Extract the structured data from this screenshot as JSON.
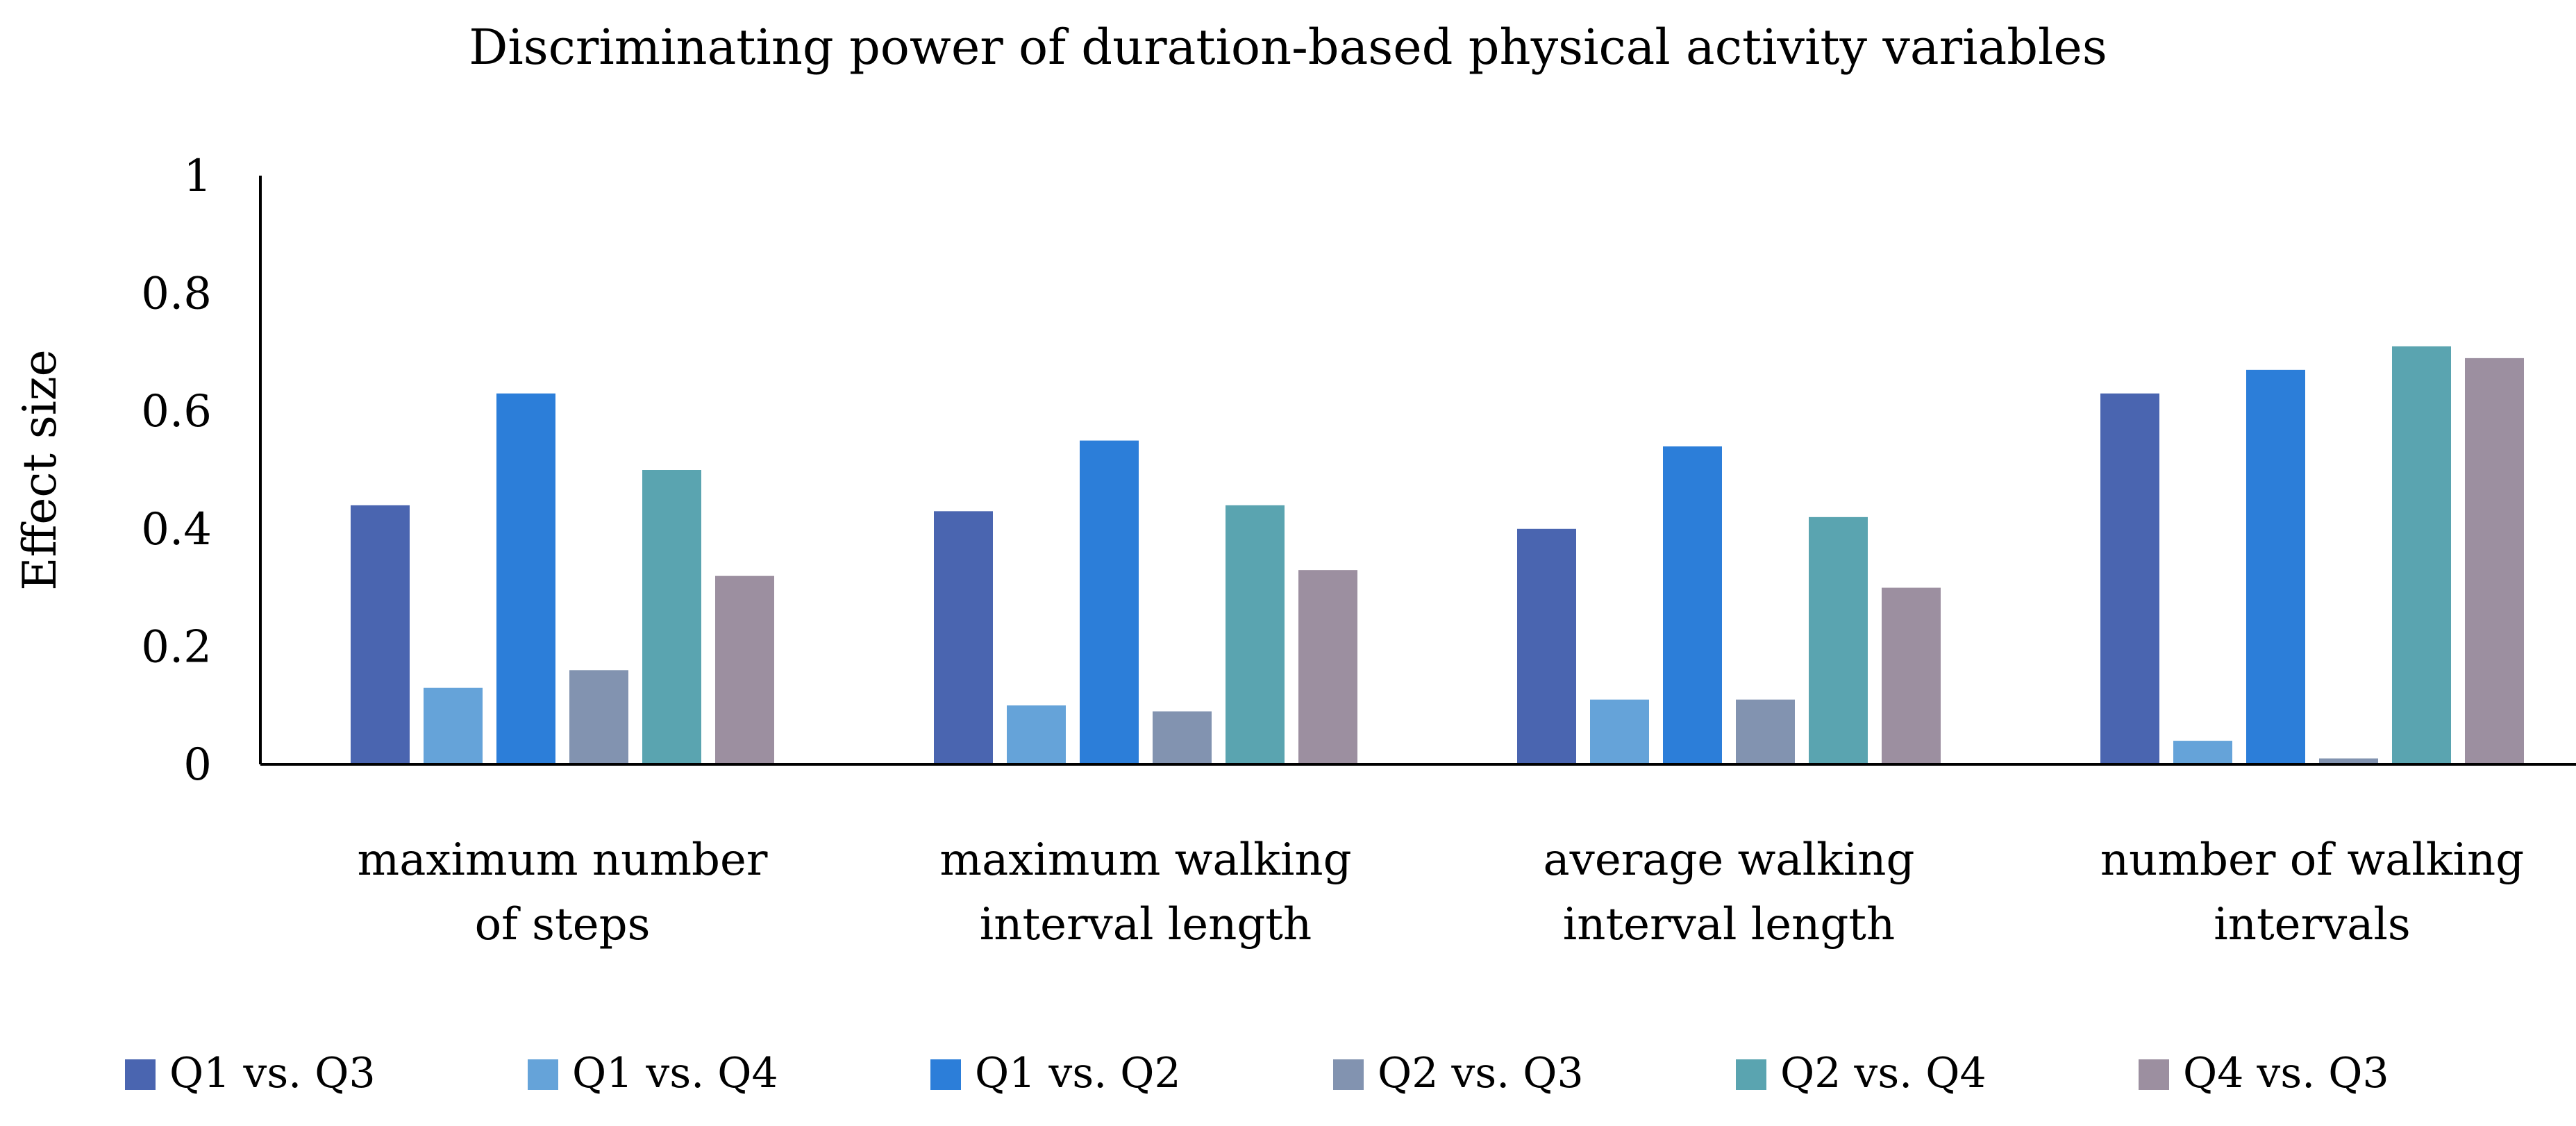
{
  "chart_data": {
    "type": "bar",
    "title": "Discriminating power of duration-based physical activity variables",
    "xlabel": "",
    "ylabel": "Effect size",
    "ylim": [
      0,
      1
    ],
    "yticks": [
      "0",
      "0.2",
      "0.4",
      "0.6",
      "0.8",
      "1"
    ],
    "grid": false,
    "legend_position": "bottom",
    "categories": [
      [
        "maximum number",
        "of steps"
      ],
      [
        "maximum walking",
        "interval length"
      ],
      [
        "average walking",
        "interval length"
      ],
      [
        "number of walking",
        "intervals"
      ]
    ],
    "series": [
      {
        "name": "Q1 vs. Q3",
        "color": "#4a65b0",
        "values": [
          0.44,
          0.43,
          0.4,
          0.63
        ]
      },
      {
        "name": "Q1 vs. Q4",
        "color": "#65a3d9",
        "values": [
          0.13,
          0.1,
          0.11,
          0.04
        ]
      },
      {
        "name": "Q1 vs. Q2",
        "color": "#2c7ed9",
        "values": [
          0.63,
          0.55,
          0.54,
          0.67
        ]
      },
      {
        "name": "Q2 vs. Q3",
        "color": "#8293b0",
        "values": [
          0.16,
          0.09,
          0.11,
          0.01
        ]
      },
      {
        "name": "Q2 vs. Q4",
        "color": "#5aa4b0",
        "values": [
          0.5,
          0.44,
          0.42,
          0.71
        ]
      },
      {
        "name": "Q4 vs. Q3",
        "color": "#9c8fa0",
        "values": [
          0.32,
          0.33,
          0.3,
          0.69
        ]
      }
    ]
  }
}
